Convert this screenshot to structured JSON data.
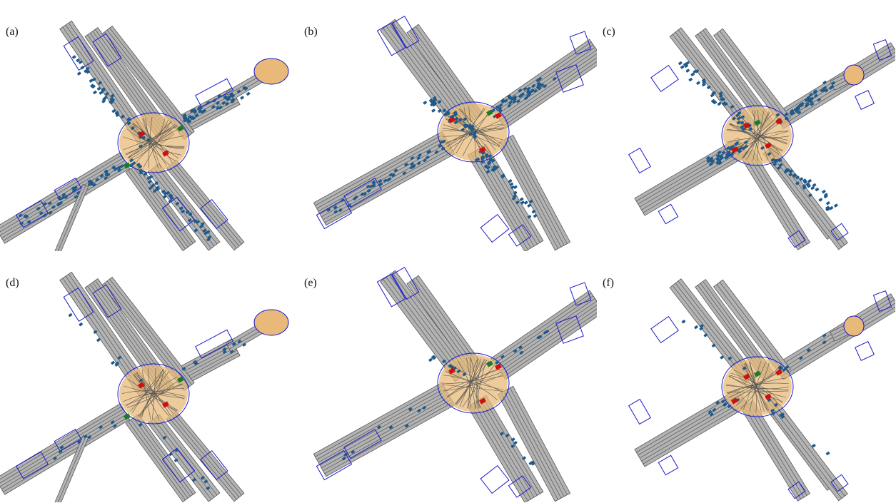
{
  "panels": [
    {
      "label": "(a)",
      "layout": "A",
      "density": "high"
    },
    {
      "label": "(b)",
      "layout": "B",
      "density": "high"
    },
    {
      "label": "(c)",
      "layout": "C",
      "density": "high"
    },
    {
      "label": "(d)",
      "layout": "A",
      "density": "low"
    },
    {
      "label": "(e)",
      "layout": "B",
      "density": "low"
    },
    {
      "label": "(f)",
      "layout": "C",
      "density": "low"
    }
  ],
  "colors": {
    "road": "#b3b3b3",
    "lane_line": "#555555",
    "boundary": "#1a1acc",
    "crosswalk": "#e8b978",
    "vehicle": "#1f5a8a",
    "signal_red": "#cc1111",
    "signal_green": "#1d7a2a"
  }
}
